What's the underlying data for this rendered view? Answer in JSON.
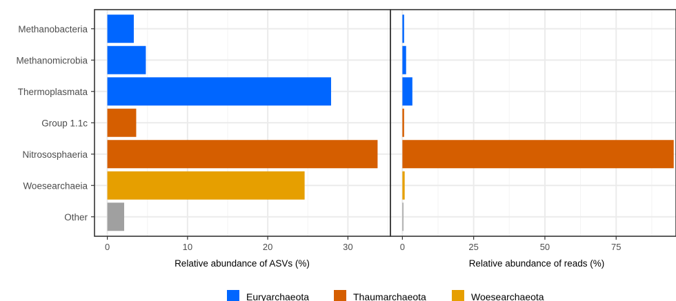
{
  "chart_data": [
    {
      "type": "bar",
      "orientation": "horizontal",
      "categories": [
        "Methanobacteria",
        "Methanomicrobia",
        "Thermoplasmata",
        "Group 1.1c",
        "Nitrososphaeria",
        "Woesearchaeia",
        "Other"
      ],
      "values": [
        3.3,
        4.8,
        27.9,
        3.6,
        33.7,
        24.6,
        2.1
      ],
      "bar_colors": [
        "#0066ff",
        "#0066ff",
        "#0066ff",
        "#d55e00",
        "#d55e00",
        "#e69f00",
        "#a0a0a0"
      ],
      "xlabel": "Relative abundance of ASVs (%)",
      "xticks": [
        0,
        10,
        20,
        30
      ],
      "xlim": [
        -1.6,
        35.3
      ],
      "grid": true
    },
    {
      "type": "bar",
      "orientation": "horizontal",
      "categories": [
        "Methanobacteria",
        "Methanomicrobia",
        "Thermoplasmata",
        "Group 1.1c",
        "Nitrososphaeria",
        "Woesearchaeia",
        "Other"
      ],
      "values": [
        0.6,
        1.3,
        3.5,
        0.6,
        95.2,
        0.8,
        0.3
      ],
      "bar_colors": [
        "#0066ff",
        "#0066ff",
        "#0066ff",
        "#d55e00",
        "#d55e00",
        "#e69f00",
        "#a0a0a0"
      ],
      "xlabel": "Relative abundance of reads (%)",
      "xticks": [
        0,
        25,
        50,
        75
      ],
      "xlim": [
        -4.2,
        96.0
      ],
      "grid": true
    }
  ],
  "legend": {
    "placement": "bottom",
    "entries": [
      {
        "label": "Euryarchaeota",
        "color": "#0066ff"
      },
      {
        "label": "Thaumarchaeota",
        "color": "#d55e00"
      },
      {
        "label": "Woesearchaeota",
        "color": "#e69f00"
      }
    ]
  },
  "colors": {
    "grid_major": "#ebebeb",
    "grid_minor": "#f3f3f3",
    "panel_border": "#333333",
    "tick_text": "#4d4d4d"
  }
}
